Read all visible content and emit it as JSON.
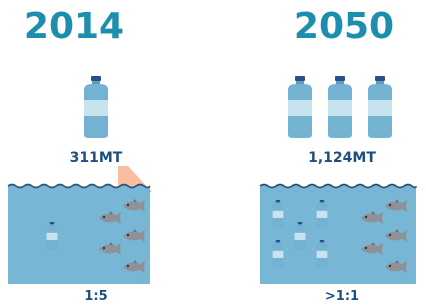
{
  "panels": [
    {
      "year": "2014",
      "amount": "311MT",
      "ratio": "1:5"
    },
    {
      "year": "2050",
      "amount": "1,124MT",
      "ratio": ">1:1"
    }
  ]
}
